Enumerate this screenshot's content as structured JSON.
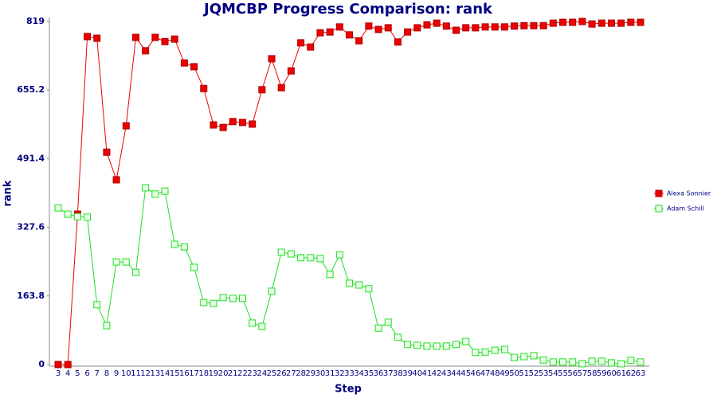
{
  "chart_data": {
    "type": "line",
    "title": "JQMCBP Progress Comparison: rank",
    "x_label": "Step",
    "y_label": "rank",
    "categories": [
      3,
      4,
      5,
      6,
      7,
      8,
      9,
      10,
      11,
      12,
      13,
      14,
      15,
      16,
      17,
      18,
      19,
      20,
      21,
      22,
      23,
      24,
      25,
      26,
      27,
      28,
      29,
      30,
      31,
      32,
      33,
      34,
      35,
      36,
      37,
      38,
      39,
      40,
      41,
      42,
      43,
      44,
      45,
      46,
      47,
      48,
      49,
      50,
      51,
      52,
      53,
      54,
      55,
      56,
      57,
      58,
      59,
      60,
      61,
      62,
      63
    ],
    "series": [
      {
        "name": "Alexa Sonnier",
        "color": "#ee0000",
        "filled": true,
        "values": [
          0,
          0,
          359,
          783,
          779,
          507,
          441,
          570,
          781,
          749,
          781,
          771,
          777,
          720,
          711,
          659,
          572,
          566,
          580,
          578,
          574,
          656,
          730,
          661,
          701,
          768,
          758,
          792,
          794,
          806,
          787,
          773,
          808,
          800,
          804,
          770,
          794,
          804,
          811,
          815,
          808,
          798,
          804,
          804,
          806,
          806,
          806,
          808,
          809,
          809,
          809,
          815,
          817,
          817,
          819,
          813,
          815,
          815,
          815,
          817,
          817
        ]
      },
      {
        "name": "Adam Schill",
        "color": "#22dd22",
        "filled": false,
        "values": [
          374,
          359,
          353,
          352,
          143,
          93,
          245,
          245,
          220,
          422,
          407,
          414,
          287,
          281,
          232,
          148,
          146,
          160,
          158,
          158,
          99,
          91,
          175,
          268,
          264,
          255,
          255,
          253,
          215,
          262,
          194,
          190,
          181,
          87,
          101,
          65,
          48,
          46,
          44,
          44,
          44,
          48,
          55,
          29,
          30,
          34,
          36,
          17,
          19,
          21,
          11,
          6,
          6,
          6,
          2,
          8,
          8,
          4,
          2,
          10,
          6
        ]
      }
    ],
    "ylim": [
      0,
      819
    ],
    "yticks": [
      0,
      163.8,
      327.6,
      491.4,
      655.2,
      819
    ],
    "legend": "right"
  }
}
